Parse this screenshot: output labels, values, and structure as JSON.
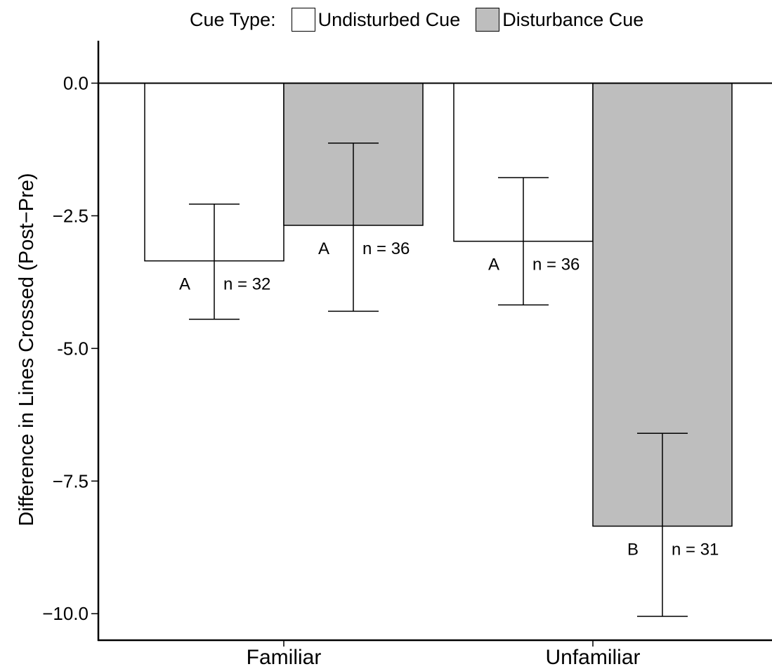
{
  "chart_data": {
    "type": "bar",
    "title": "",
    "xlabel": "",
    "ylabel": "Difference in Lines Crossed (Post−Pre)",
    "ylim": [
      -10.5,
      0.8
    ],
    "yticks": [
      0.0,
      -2.5,
      -5.0,
      -7.5,
      -10.0
    ],
    "ytick_labels": [
      "0.0",
      "−2.5",
      "-5.0",
      "−7.5",
      "−10.0"
    ],
    "categories": [
      "Familiar",
      "Unfamiliar"
    ],
    "legend": {
      "title": "Cue Type:",
      "placement": "top",
      "items": [
        {
          "label": "Undisturbed Cue",
          "color": "#ffffff"
        },
        {
          "label": "Disturbance Cue",
          "color": "#bebebe"
        }
      ]
    },
    "series": [
      {
        "name": "Undisturbed Cue",
        "color": "#ffffff",
        "values": [
          -3.35,
          -2.98
        ],
        "error_low": [
          -4.45,
          -4.18
        ],
        "error_high": [
          -2.28,
          -1.78
        ],
        "letters": [
          "A",
          "A"
        ],
        "n_labels": [
          "n = 32",
          "n = 36"
        ]
      },
      {
        "name": "Disturbance Cue",
        "color": "#bebebe",
        "values": [
          -2.68,
          -8.35
        ],
        "error_low": [
          -4.3,
          -10.05
        ],
        "error_high": [
          -1.13,
          -6.6
        ],
        "letters": [
          "A",
          "B"
        ],
        "n_labels": [
          "n = 36",
          "n = 31"
        ]
      }
    ]
  }
}
